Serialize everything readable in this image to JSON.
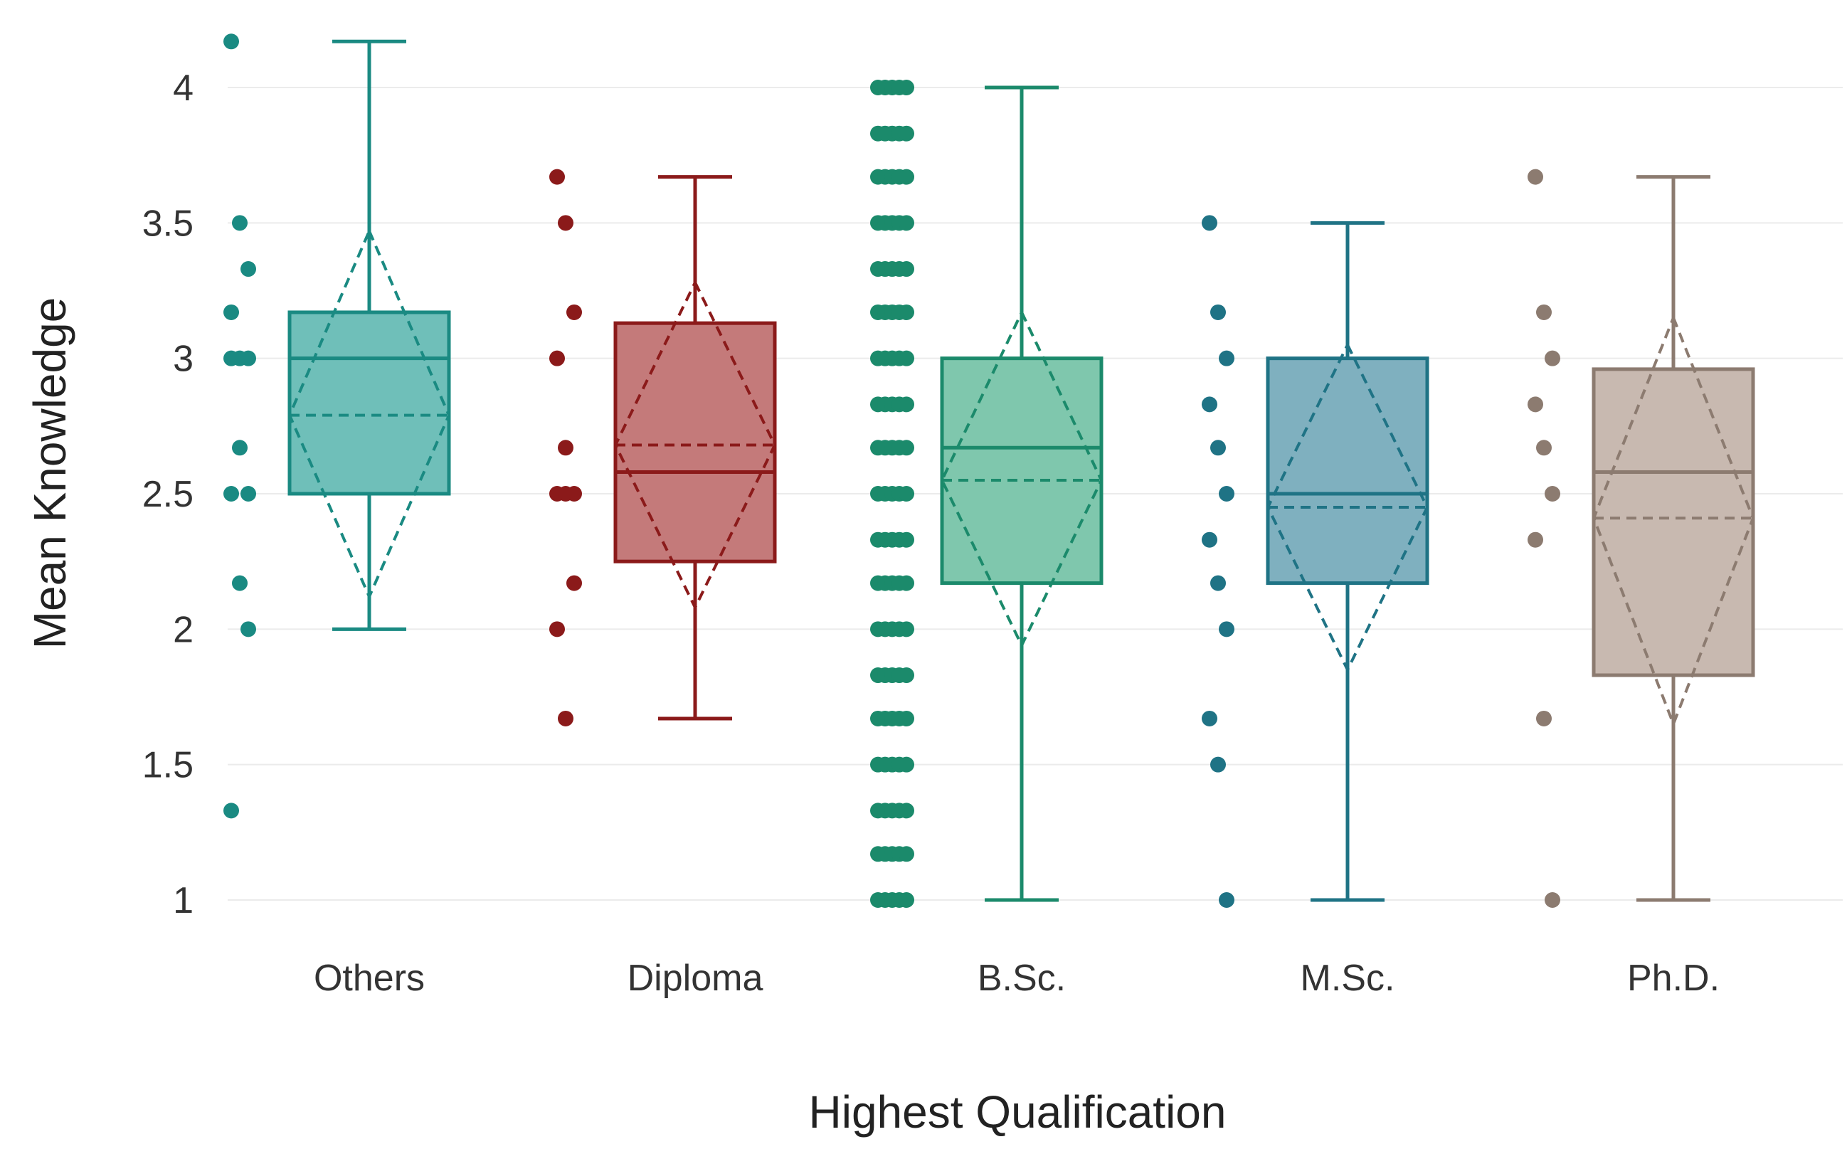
{
  "chart_data": {
    "type": "box",
    "title": "",
    "xlabel": "Highest Qualification",
    "ylabel": "Mean Knowledge",
    "ylim": [
      0.9,
      4.2
    ],
    "yticks": [
      1,
      1.5,
      2,
      2.5,
      3,
      3.5,
      4
    ],
    "ytick_labels": [
      "1",
      "1.5",
      "2",
      "2.5",
      "3",
      "3.5",
      "4"
    ],
    "grid": true,
    "series": [
      {
        "name": "Others",
        "color": "#1a8a82",
        "fill": "#6fbfb9",
        "whisker_low": 2.0,
        "q1": 2.5,
        "median": 3.0,
        "q3": 3.17,
        "whisker_high": 4.17,
        "mean": 2.79,
        "mean_ci_low": 2.12,
        "mean_ci_high": 3.47,
        "points": [
          4.17,
          3.5,
          3.33,
          3.17,
          3.0,
          3.0,
          3.0,
          2.67,
          2.5,
          2.5,
          2.17,
          2.0,
          1.33
        ]
      },
      {
        "name": "Diploma",
        "color": "#8b1a1a",
        "fill": "#c47a7a",
        "whisker_low": 1.67,
        "q1": 2.25,
        "median": 2.58,
        "q3": 3.13,
        "whisker_high": 3.67,
        "mean": 2.68,
        "mean_ci_low": 2.08,
        "mean_ci_high": 3.28,
        "points": [
          3.67,
          3.5,
          3.17,
          3.0,
          2.67,
          2.5,
          2.5,
          2.5,
          2.17,
          2.0,
          1.67
        ]
      },
      {
        "name": "B.Sc.",
        "color": "#1b8a6b",
        "fill": "#7fc7ad",
        "whisker_low": 1.0,
        "q1": 2.17,
        "median": 2.67,
        "q3": 3.0,
        "whisker_high": 4.0,
        "mean": 2.55,
        "mean_ci_low": 1.94,
        "mean_ci_high": 3.17,
        "points": [
          4.0,
          3.83,
          3.67,
          3.5,
          3.33,
          3.17,
          3.0,
          2.83,
          2.67,
          2.5,
          2.33,
          2.17,
          2.0,
          1.83,
          1.67,
          1.5,
          1.33,
          1.17,
          1.0
        ]
      },
      {
        "name": "M.Sc.",
        "color": "#1f7385",
        "fill": "#7fb0bf",
        "whisker_low": 1.0,
        "q1": 2.17,
        "median": 2.5,
        "q3": 3.0,
        "whisker_high": 3.5,
        "mean": 2.45,
        "mean_ci_low": 1.85,
        "mean_ci_high": 3.05,
        "points": [
          3.5,
          3.17,
          3.0,
          2.83,
          2.67,
          2.5,
          2.33,
          2.17,
          2.0,
          1.67,
          1.5,
          1.0
        ]
      },
      {
        "name": "Ph.D.",
        "color": "#8c7b70",
        "fill": "#c8b9b0",
        "whisker_low": 1.0,
        "q1": 1.83,
        "median": 2.58,
        "q3": 2.96,
        "whisker_high": 3.67,
        "mean": 2.41,
        "mean_ci_low": 1.65,
        "mean_ci_high": 3.15,
        "points": [
          3.67,
          3.17,
          3.0,
          2.83,
          2.67,
          2.5,
          2.33,
          1.67,
          1.0
        ]
      }
    ]
  }
}
